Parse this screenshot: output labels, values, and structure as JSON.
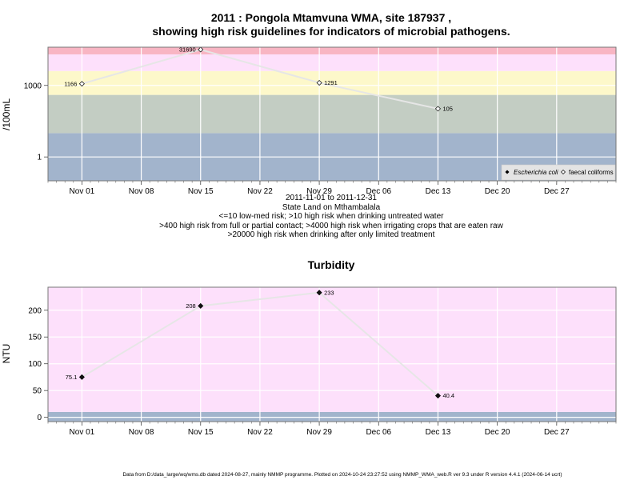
{
  "footer": "Data from D:/data_large/wq/wms.db dated 2024-08-27, mainly NMMP programme. Plotted on 2024-10-24 23:27:52 using NMMP_WMA_web.R ver 9.3 under R version 4.4.1 (2024-06-14 ucrt)",
  "chart_data": [
    {
      "type": "line",
      "title_line1": "2011 : Pongola Mtamvuna WMA, site 187937 ,",
      "title_line2": "showing high risk guidelines for indicators of microbial pathogens.",
      "subtitle_lines": [
        "2011-11-01 to 2011-12-31",
        "State Land on Mthambalala",
        "<=10 low-med risk; >10 high risk when drinking untreated water",
        ">400 high risk from full or partial contact; >4000 high risk when irrigating crops that are eaten raw",
        ">20000 high risk when drinking after only limited treatment"
      ],
      "ylabel": "/100mL",
      "yscale": "log10",
      "ylim": [
        0.1,
        40000
      ],
      "y_ticks": [
        {
          "value": 1,
          "label": "1"
        },
        {
          "value": 1000,
          "label": "1000"
        }
      ],
      "xlim": [
        "2011-10-28",
        "2012-01-03"
      ],
      "x_ticks": [
        {
          "date": "2011-11-01",
          "label": "Nov 01"
        },
        {
          "date": "2011-11-08",
          "label": "Nov 08"
        },
        {
          "date": "2011-11-15",
          "label": "Nov 15"
        },
        {
          "date": "2011-11-22",
          "label": "Nov 22"
        },
        {
          "date": "2011-11-29",
          "label": "Nov 29"
        },
        {
          "date": "2011-12-06",
          "label": "Dec 06"
        },
        {
          "date": "2011-12-13",
          "label": "Dec 13"
        },
        {
          "date": "2011-12-20",
          "label": "Dec 20"
        },
        {
          "date": "2011-12-27",
          "label": "Dec 27"
        }
      ],
      "grid": true,
      "bands": [
        {
          "from": 0.1,
          "to": 10,
          "color": "#a2b4cc"
        },
        {
          "from": 10,
          "to": 400,
          "color": "#c3cdc3"
        },
        {
          "from": 400,
          "to": 4000,
          "color": "#fdf8ca"
        },
        {
          "from": 4000,
          "to": 20000,
          "color": "#fde0fb"
        },
        {
          "from": 20000,
          "to": 40000,
          "color": "#f8b5c3"
        }
      ],
      "legend": {
        "position": "bottom-right",
        "items": [
          {
            "label": "Escherichia coli",
            "marker": "filled-diamond",
            "italic": true
          },
          {
            "label": "faecal coliforms",
            "marker": "open-diamond",
            "italic": false
          }
        ]
      },
      "series": [
        {
          "name": "faecal coliforms",
          "marker": "open-diamond",
          "points": [
            {
              "date": "2011-11-01",
              "value": 1166,
              "label": "1166"
            },
            {
              "date": "2011-11-15",
              "value": 31690,
              "label": "31690"
            },
            {
              "date": "2011-11-29",
              "value": 1291,
              "label": "1291"
            },
            {
              "date": "2011-12-13",
              "value": 105,
              "label": "105"
            }
          ]
        }
      ]
    },
    {
      "type": "line",
      "title": "Turbidity",
      "ylabel": "NTU",
      "ylim": [
        -8,
        243
      ],
      "y_ticks": [
        {
          "value": 0,
          "label": "0"
        },
        {
          "value": 50,
          "label": "50"
        },
        {
          "value": 100,
          "label": "100"
        },
        {
          "value": 150,
          "label": "150"
        },
        {
          "value": 200,
          "label": "200"
        }
      ],
      "xlim": [
        "2011-10-28",
        "2012-01-03"
      ],
      "x_ticks": [
        {
          "date": "2011-11-01",
          "label": "Nov 01"
        },
        {
          "date": "2011-11-08",
          "label": "Nov 08"
        },
        {
          "date": "2011-11-15",
          "label": "Nov 15"
        },
        {
          "date": "2011-11-22",
          "label": "Nov 22"
        },
        {
          "date": "2011-11-29",
          "label": "Nov 29"
        },
        {
          "date": "2011-12-06",
          "label": "Dec 06"
        },
        {
          "date": "2011-12-13",
          "label": "Dec 13"
        },
        {
          "date": "2011-12-20",
          "label": "Dec 20"
        },
        {
          "date": "2011-12-27",
          "label": "Dec 27"
        }
      ],
      "grid": true,
      "bands": [
        {
          "from": -8,
          "to": 10,
          "color": "#a2b4cc"
        },
        {
          "from": 10,
          "to": 243,
          "color": "#fde0fb"
        }
      ],
      "series": [
        {
          "name": "",
          "marker": "filled-diamond",
          "points": [
            {
              "date": "2011-11-01",
              "value": 75.1,
              "label": "75.1"
            },
            {
              "date": "2011-11-15",
              "value": 208,
              "label": "208"
            },
            {
              "date": "2011-11-29",
              "value": 233,
              "label": "233"
            },
            {
              "date": "2011-12-13",
              "value": 40.4,
              "label": "40.4"
            }
          ]
        }
      ]
    }
  ]
}
